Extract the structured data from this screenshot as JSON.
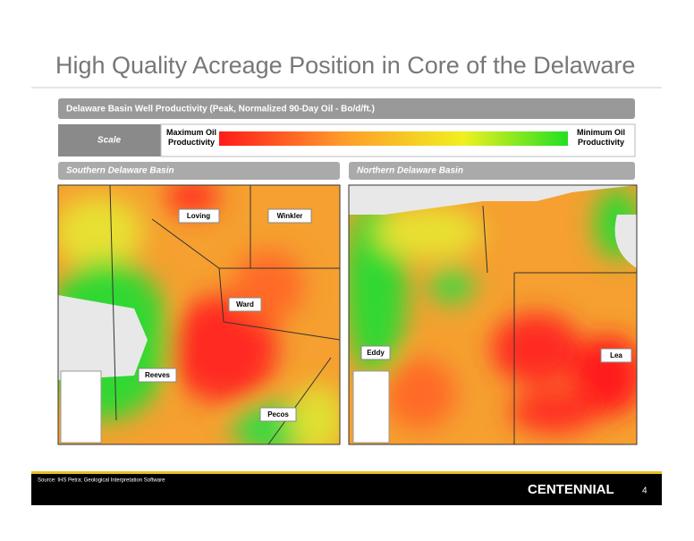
{
  "title": "High Quality Acreage Position in Core of the Delaware",
  "section_bar": "Delaware Basin Well Productivity (Peak, Normalized 90-Day Oil - Bo/d/ft.)",
  "scale": {
    "label": "Scale",
    "max_label": "Maximum Oil Productivity",
    "min_label": "Minimum Oil Productivity"
  },
  "panels": [
    {
      "title": "Southern Delaware Basin",
      "labels": [
        "Loving",
        "Winkler",
        "Ward",
        "Reeves",
        "Pecos"
      ]
    },
    {
      "title": "Northern Delaware Basin",
      "labels": [
        "Eddy",
        "Lea"
      ]
    }
  ],
  "footer": {
    "source": "Source: IHS Petra; Geological Interpretation Software",
    "logo": "CENTENNIAL",
    "page": "4"
  }
}
